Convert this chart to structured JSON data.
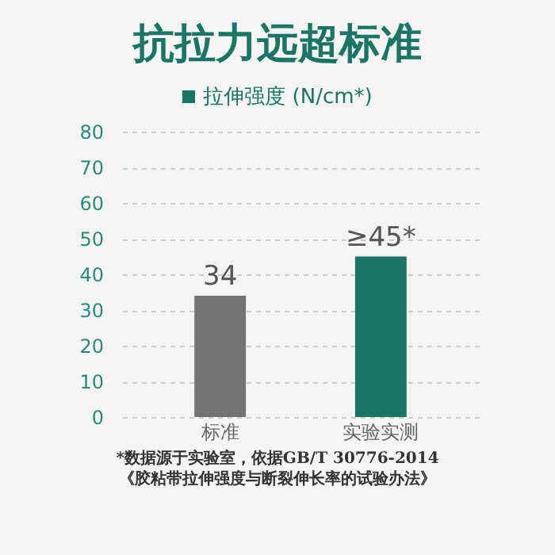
{
  "chart_data": {
    "type": "bar",
    "title": "抗拉力远超标准",
    "categories": [
      "标准",
      "实验实测"
    ],
    "series": [
      {
        "name": "拉伸强度 (N/cm*)",
        "color": "#1a7565",
        "colors": [
          "#737373",
          "#1a7565"
        ],
        "values": [
          34,
          45
        ],
        "value_labels": [
          "34",
          "≥45*"
        ]
      }
    ],
    "ylim": [
      0,
      80
    ],
    "yticks": [
      0,
      10,
      20,
      30,
      40,
      50,
      60,
      70,
      80
    ],
    "grid": "y",
    "legend": "top",
    "annotations": [
      "*数据源于实验室，依据GB/T 30776-2014",
      "《胶粘带拉伸强度与断裂伸长率的试验办法》"
    ]
  }
}
